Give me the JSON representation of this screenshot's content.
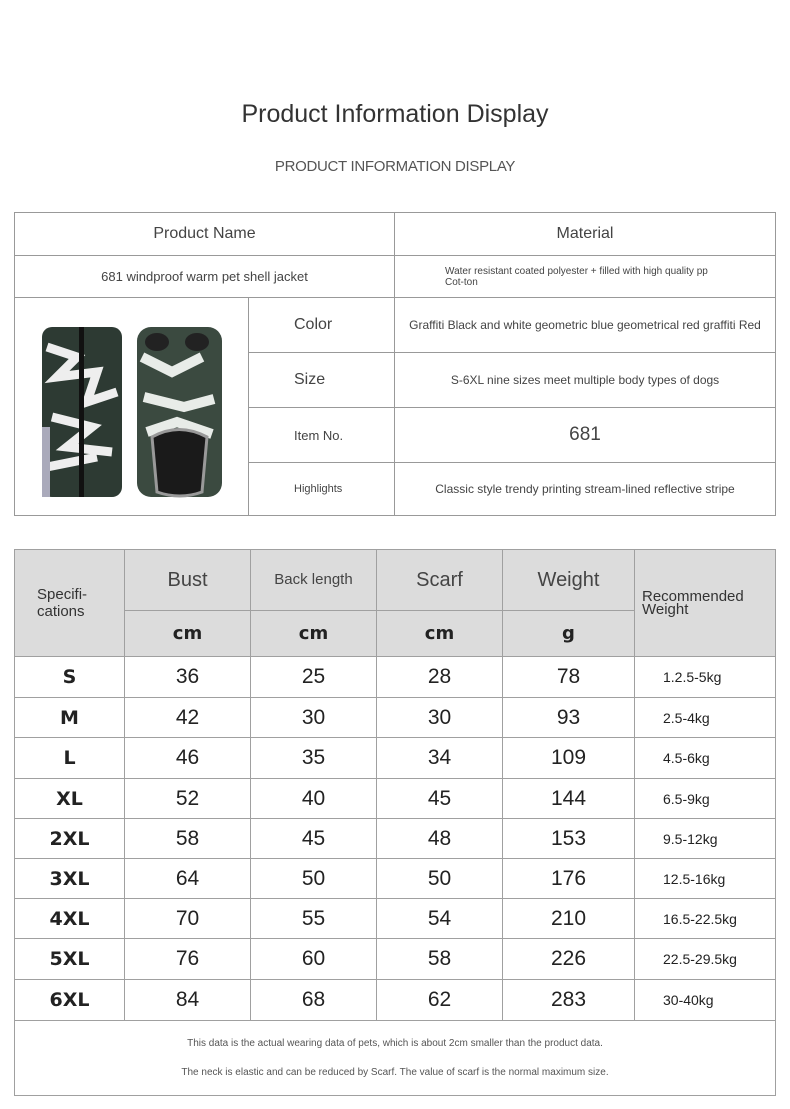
{
  "header": {
    "title": "Product Information Display",
    "subtitle": "PRODUCT INFORMATION DISPLAY"
  },
  "info_table": {
    "product_name_label": "Product Name",
    "material_label": "Material",
    "product_name": "681 windproof warm pet shell jacket",
    "material": "Water resistant coated polyester + filled with high quality pp Cot-ton",
    "rows": [
      {
        "label": "Color",
        "value": "Graffiti Black and white geometric blue geometrical red graffiti Red"
      },
      {
        "label": "Size",
        "value": "S-6XL nine sizes meet multiple body types of dogs"
      },
      {
        "label": "Item No.",
        "value": "681"
      },
      {
        "label": "Highlights",
        "value": "Classic style trendy printing stream-lined reflective stripe"
      }
    ]
  },
  "size_table": {
    "headers": [
      "Specifi-cations",
      "Bust",
      "Back length",
      "Scarf",
      "Weight",
      "Recommended Weight"
    ],
    "units": [
      "cm",
      "cm",
      "cm",
      "g"
    ],
    "rows": [
      [
        "S",
        "36",
        "25",
        "28",
        "78",
        "1.2.5-5kg"
      ],
      [
        "M",
        "42",
        "30",
        "30",
        "93",
        "2.5-4kg"
      ],
      [
        "L",
        "46",
        "35",
        "34",
        "109",
        "4.5-6kg"
      ],
      [
        "XL",
        "52",
        "40",
        "45",
        "144",
        "6.5-9kg"
      ],
      [
        "2XL",
        "58",
        "45",
        "48",
        "153",
        "9.5-12kg"
      ],
      [
        "3XL",
        "64",
        "50",
        "50",
        "176",
        "12.5-16kg"
      ],
      [
        "4XL",
        "70",
        "55",
        "54",
        "210",
        "16.5-22.5kg"
      ],
      [
        "5XL",
        "76",
        "60",
        "58",
        "226",
        "22.5-29.5kg"
      ],
      [
        "6XL",
        "84",
        "68",
        "62",
        "283",
        "30-40kg"
      ]
    ],
    "notes": [
      "This data is the actual wearing data of pets, which is about 2cm smaller than the product data.",
      "The neck is elastic and can be reduced by Scarf. The value of scarf is the normal maximum size."
    ]
  }
}
